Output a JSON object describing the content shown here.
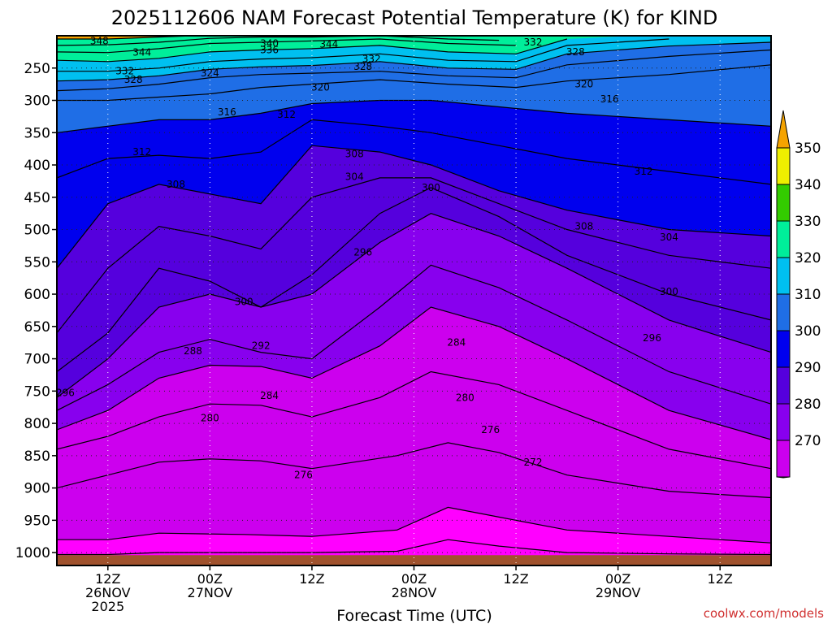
{
  "chart_data": {
    "type": "heatmap",
    "title": "2025112606 NAM Forecast Potential Temperature (K) for KIND",
    "xlabel": "Forecast Time (UTC)",
    "ylabel": "",
    "watermark": "coolwx.com/models",
    "x_ticks": [
      {
        "hour": 6,
        "lines": [
          "12Z",
          "26NOV",
          "2025"
        ]
      },
      {
        "hour": 18,
        "lines": [
          "00Z",
          "27NOV"
        ]
      },
      {
        "hour": 30,
        "lines": [
          "12Z"
        ]
      },
      {
        "hour": 42,
        "lines": [
          "00Z",
          "28NOV"
        ]
      },
      {
        "hour": 54,
        "lines": [
          "12Z"
        ]
      },
      {
        "hour": 66,
        "lines": [
          "00Z",
          "29NOV"
        ]
      },
      {
        "hour": 78,
        "lines": [
          "12Z"
        ]
      }
    ],
    "xlim": [
      0,
      84
    ],
    "y_ticks": [
      250,
      300,
      350,
      400,
      450,
      500,
      550,
      600,
      650,
      700,
      750,
      800,
      850,
      900,
      950,
      1000
    ],
    "ylim": [
      200,
      1020
    ],
    "colorbar": {
      "levels": [
        270,
        280,
        290,
        300,
        310,
        320,
        330,
        340,
        350
      ],
      "colors": [
        "#ff00ff",
        "#cc00ee",
        "#8800ee",
        "#5500dd",
        "#0000ee",
        "#1f6ee6",
        "#00c0f0",
        "#00ee9a",
        "#33cc00",
        "#eeee00",
        "#f5a300"
      ],
      "band_labels": [
        "270",
        "280",
        "290",
        "300",
        "310",
        "320",
        "330",
        "340",
        "350"
      ]
    },
    "series": [
      {
        "name": "272",
        "label": "272",
        "values": [
          [
            0,
            1003
          ],
          [
            6,
            1003
          ],
          [
            12,
            1000
          ],
          [
            22,
            1000
          ],
          [
            30,
            1000
          ],
          [
            40,
            998
          ],
          [
            46,
            980
          ],
          [
            52,
            990
          ],
          [
            60,
            1000
          ],
          [
            72,
            1002
          ],
          [
            84,
            1003
          ]
        ]
      },
      {
        "name": "276",
        "label": "276",
        "values": [
          [
            0,
            980
          ],
          [
            6,
            980
          ],
          [
            12,
            970
          ],
          [
            22,
            972
          ],
          [
            30,
            975
          ],
          [
            40,
            965
          ],
          [
            46,
            930
          ],
          [
            52,
            945
          ],
          [
            60,
            965
          ],
          [
            72,
            975
          ],
          [
            84,
            985
          ]
        ]
      },
      {
        "name": "280",
        "label": "280",
        "values": [
          [
            0,
            900
          ],
          [
            6,
            880
          ],
          [
            12,
            860
          ],
          [
            18,
            855
          ],
          [
            24,
            858
          ],
          [
            30,
            870
          ],
          [
            40,
            850
          ],
          [
            46,
            830
          ],
          [
            52,
            845
          ],
          [
            60,
            880
          ],
          [
            72,
            905
          ],
          [
            84,
            915
          ]
        ]
      },
      {
        "name": "284",
        "label": "284",
        "values": [
          [
            0,
            840
          ],
          [
            6,
            820
          ],
          [
            12,
            790
          ],
          [
            18,
            770
          ],
          [
            24,
            772
          ],
          [
            30,
            790
          ],
          [
            38,
            760
          ],
          [
            44,
            720
          ],
          [
            52,
            740
          ],
          [
            60,
            780
          ],
          [
            72,
            840
          ],
          [
            84,
            870
          ]
        ]
      },
      {
        "name": "288",
        "label": "288",
        "values": [
          [
            0,
            810
          ],
          [
            6,
            780
          ],
          [
            12,
            730
          ],
          [
            18,
            710
          ],
          [
            24,
            712
          ],
          [
            30,
            730
          ],
          [
            38,
            680
          ],
          [
            44,
            620
          ],
          [
            52,
            650
          ],
          [
            60,
            700
          ],
          [
            72,
            780
          ],
          [
            84,
            825
          ]
        ]
      },
      {
        "name": "292",
        "label": "292",
        "values": [
          [
            0,
            780
          ],
          [
            6,
            740
          ],
          [
            12,
            690
          ],
          [
            18,
            670
          ],
          [
            24,
            690
          ],
          [
            30,
            700
          ],
          [
            38,
            620
          ],
          [
            44,
            555
          ],
          [
            52,
            590
          ],
          [
            60,
            640
          ],
          [
            72,
            720
          ],
          [
            84,
            770
          ]
        ]
      },
      {
        "name": "296",
        "label": "296",
        "values": [
          [
            0,
            760
          ],
          [
            6,
            700
          ],
          [
            12,
            620
          ],
          [
            18,
            600
          ],
          [
            24,
            620
          ],
          [
            30,
            600
          ],
          [
            38,
            520
          ],
          [
            44,
            475
          ],
          [
            52,
            510
          ],
          [
            60,
            560
          ],
          [
            72,
            640
          ],
          [
            84,
            690
          ]
        ]
      },
      {
        "name": "300",
        "label": "300",
        "values": [
          [
            0,
            720
          ],
          [
            6,
            660
          ],
          [
            12,
            560
          ],
          [
            18,
            580
          ],
          [
            24,
            620
          ],
          [
            30,
            570
          ],
          [
            38,
            475
          ],
          [
            44,
            435
          ],
          [
            52,
            480
          ],
          [
            60,
            540
          ],
          [
            72,
            600
          ],
          [
            84,
            640
          ]
        ]
      },
      {
        "name": "304",
        "label": "304",
        "values": [
          [
            0,
            660
          ],
          [
            6,
            560
          ],
          [
            12,
            495
          ],
          [
            18,
            510
          ],
          [
            24,
            530
          ],
          [
            30,
            450
          ],
          [
            38,
            420
          ],
          [
            44,
            420
          ],
          [
            52,
            460
          ],
          [
            60,
            500
          ],
          [
            72,
            540
          ],
          [
            84,
            560
          ]
        ]
      },
      {
        "name": "308",
        "label": "308",
        "values": [
          [
            0,
            560
          ],
          [
            6,
            460
          ],
          [
            12,
            430
          ],
          [
            18,
            445
          ],
          [
            24,
            460
          ],
          [
            30,
            370
          ],
          [
            38,
            380
          ],
          [
            44,
            400
          ],
          [
            52,
            440
          ],
          [
            60,
            470
          ],
          [
            72,
            500
          ],
          [
            84,
            510
          ]
        ]
      },
      {
        "name": "312",
        "label": "312",
        "values": [
          [
            0,
            420
          ],
          [
            6,
            390
          ],
          [
            12,
            385
          ],
          [
            18,
            390
          ],
          [
            24,
            380
          ],
          [
            30,
            330
          ],
          [
            38,
            340
          ],
          [
            44,
            350
          ],
          [
            52,
            370
          ],
          [
            60,
            390
          ],
          [
            72,
            410
          ],
          [
            84,
            430
          ]
        ]
      },
      {
        "name": "316",
        "label": "316",
        "values": [
          [
            0,
            350
          ],
          [
            6,
            340
          ],
          [
            12,
            330
          ],
          [
            18,
            330
          ],
          [
            24,
            320
          ],
          [
            30,
            305
          ],
          [
            38,
            300
          ],
          [
            44,
            300
          ],
          [
            52,
            310
          ],
          [
            60,
            320
          ],
          [
            72,
            330
          ],
          [
            84,
            340
          ]
        ]
      },
      {
        "name": "320",
        "label": "320",
        "values": [
          [
            0,
            300
          ],
          [
            6,
            300
          ],
          [
            12,
            295
          ],
          [
            18,
            290
          ],
          [
            24,
            280
          ],
          [
            30,
            275
          ],
          [
            38,
            268
          ],
          [
            46,
            275
          ],
          [
            54,
            280
          ],
          [
            60,
            270
          ],
          [
            72,
            260
          ],
          [
            84,
            245
          ]
        ]
      },
      {
        "name": "324",
        "label": "324",
        "values": [
          [
            0,
            285
          ],
          [
            6,
            282
          ],
          [
            12,
            275
          ],
          [
            18,
            265
          ],
          [
            24,
            260
          ],
          [
            30,
            258
          ],
          [
            38,
            255
          ],
          [
            46,
            262
          ],
          [
            54,
            265
          ],
          [
            60,
            245
          ],
          [
            72,
            232
          ],
          [
            84,
            222
          ]
        ]
      },
      {
        "name": "328",
        "label": "328",
        "values": [
          [
            0,
            270
          ],
          [
            6,
            268
          ],
          [
            12,
            262
          ],
          [
            18,
            252
          ],
          [
            24,
            248
          ],
          [
            30,
            246
          ],
          [
            38,
            240
          ],
          [
            46,
            250
          ],
          [
            54,
            252
          ],
          [
            60,
            228
          ],
          [
            72,
            216
          ],
          [
            84,
            210
          ]
        ]
      },
      {
        "name": "332",
        "label": "332",
        "values": [
          [
            0,
            255
          ],
          [
            6,
            255
          ],
          [
            12,
            250
          ],
          [
            18,
            240
          ],
          [
            24,
            236
          ],
          [
            30,
            234
          ],
          [
            38,
            228
          ],
          [
            46,
            238
          ],
          [
            54,
            240
          ],
          [
            60,
            215
          ],
          [
            72,
            205
          ]
        ]
      },
      {
        "name": "336",
        "label": "336",
        "values": [
          [
            0,
            238
          ],
          [
            6,
            240
          ],
          [
            12,
            235
          ],
          [
            18,
            225
          ],
          [
            24,
            222
          ],
          [
            30,
            220
          ],
          [
            38,
            215
          ],
          [
            46,
            225
          ],
          [
            54,
            228
          ],
          [
            60,
            205
          ]
        ]
      },
      {
        "name": "340",
        "label": "340",
        "values": [
          [
            0,
            225
          ],
          [
            6,
            226
          ],
          [
            12,
            220
          ],
          [
            18,
            212
          ],
          [
            24,
            210
          ],
          [
            30,
            208
          ],
          [
            38,
            205
          ],
          [
            46,
            212
          ],
          [
            54,
            215
          ]
        ]
      },
      {
        "name": "344",
        "label": "344",
        "values": [
          [
            0,
            215
          ],
          [
            6,
            214
          ],
          [
            12,
            210
          ],
          [
            18,
            204
          ],
          [
            24,
            202
          ],
          [
            30,
            202
          ],
          [
            38,
            200
          ],
          [
            46,
            205
          ],
          [
            52,
            207
          ]
        ]
      },
      {
        "name": "348",
        "label": "348",
        "values": [
          [
            0,
            205
          ],
          [
            6,
            205
          ],
          [
            12,
            202
          ],
          [
            16,
            200
          ]
        ]
      }
    ],
    "label_positions": [
      {
        "label": "348",
        "x": 5,
        "y": 208
      },
      {
        "label": "344",
        "x": 10,
        "y": 226
      },
      {
        "label": "340",
        "x": 25,
        "y": 212
      },
      {
        "label": "336",
        "x": 25,
        "y": 222
      },
      {
        "label": "344",
        "x": 32,
        "y": 213
      },
      {
        "label": "332",
        "x": 37,
        "y": 236
      },
      {
        "label": "328",
        "x": 36,
        "y": 248
      },
      {
        "label": "332",
        "x": 8,
        "y": 255
      },
      {
        "label": "328",
        "x": 9,
        "y": 268
      },
      {
        "label": "324",
        "x": 18,
        "y": 258
      },
      {
        "label": "332",
        "x": 56,
        "y": 210
      },
      {
        "label": "328",
        "x": 61,
        "y": 225
      },
      {
        "label": "320",
        "x": 31,
        "y": 280
      },
      {
        "label": "320",
        "x": 62,
        "y": 275
      },
      {
        "label": "316",
        "x": 20,
        "y": 318
      },
      {
        "label": "312",
        "x": 27,
        "y": 322
      },
      {
        "label": "316",
        "x": 65,
        "y": 298
      },
      {
        "label": "312",
        "x": 10,
        "y": 380
      },
      {
        "label": "308",
        "x": 14,
        "y": 430
      },
      {
        "label": "308",
        "x": 35,
        "y": 383
      },
      {
        "label": "304",
        "x": 35,
        "y": 418
      },
      {
        "label": "312",
        "x": 69,
        "y": 410
      },
      {
        "label": "300",
        "x": 44,
        "y": 435
      },
      {
        "label": "296",
        "x": 36,
        "y": 535
      },
      {
        "label": "308",
        "x": 62,
        "y": 495
      },
      {
        "label": "304",
        "x": 72,
        "y": 512
      },
      {
        "label": "300",
        "x": 22,
        "y": 612
      },
      {
        "label": "292",
        "x": 24,
        "y": 680
      },
      {
        "label": "300",
        "x": 72,
        "y": 596
      },
      {
        "label": "288",
        "x": 16,
        "y": 688
      },
      {
        "label": "296",
        "x": 70,
        "y": 668
      },
      {
        "label": "284",
        "x": 47,
        "y": 675
      },
      {
        "label": "296",
        "x": 1,
        "y": 753
      },
      {
        "label": "284",
        "x": 25,
        "y": 757
      },
      {
        "label": "280",
        "x": 18,
        "y": 792
      },
      {
        "label": "280",
        "x": 48,
        "y": 760
      },
      {
        "label": "276",
        "x": 51,
        "y": 810
      },
      {
        "label": "276",
        "x": 29,
        "y": 880
      },
      {
        "label": "272",
        "x": 56,
        "y": 860
      }
    ]
  }
}
